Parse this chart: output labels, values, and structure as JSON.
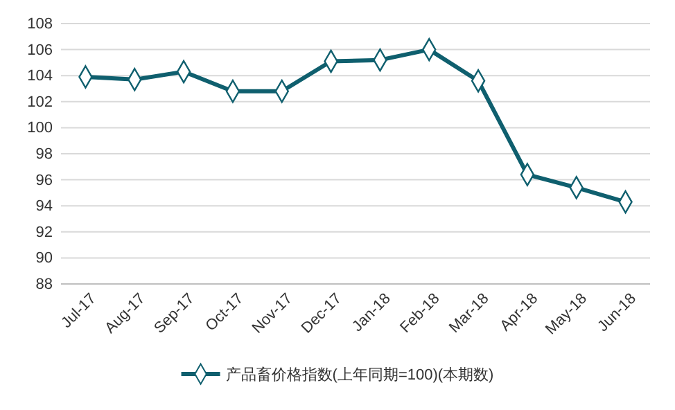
{
  "chart_data": {
    "type": "line",
    "categories": [
      "Jul-17",
      "Aug-17",
      "Sep-17",
      "Oct-17",
      "Nov-17",
      "Dec-17",
      "Jan-18",
      "Feb-18",
      "Mar-18",
      "Apr-18",
      "May-18",
      "Jun-18"
    ],
    "series": [
      {
        "name": "产品畜价格指数(上年同期=100)(本期数)",
        "color": "#0f5f6e",
        "values": [
          103.9,
          103.7,
          104.3,
          102.8,
          102.8,
          105.1,
          105.2,
          106.0,
          103.6,
          96.4,
          95.4,
          94.3
        ]
      }
    ],
    "ylim": [
      88,
      108
    ],
    "yticks": [
      88,
      90,
      92,
      94,
      96,
      98,
      100,
      102,
      104,
      106,
      108
    ],
    "grid": "y",
    "legend": "bottom",
    "marker": "diamond",
    "line_style": "solid"
  }
}
